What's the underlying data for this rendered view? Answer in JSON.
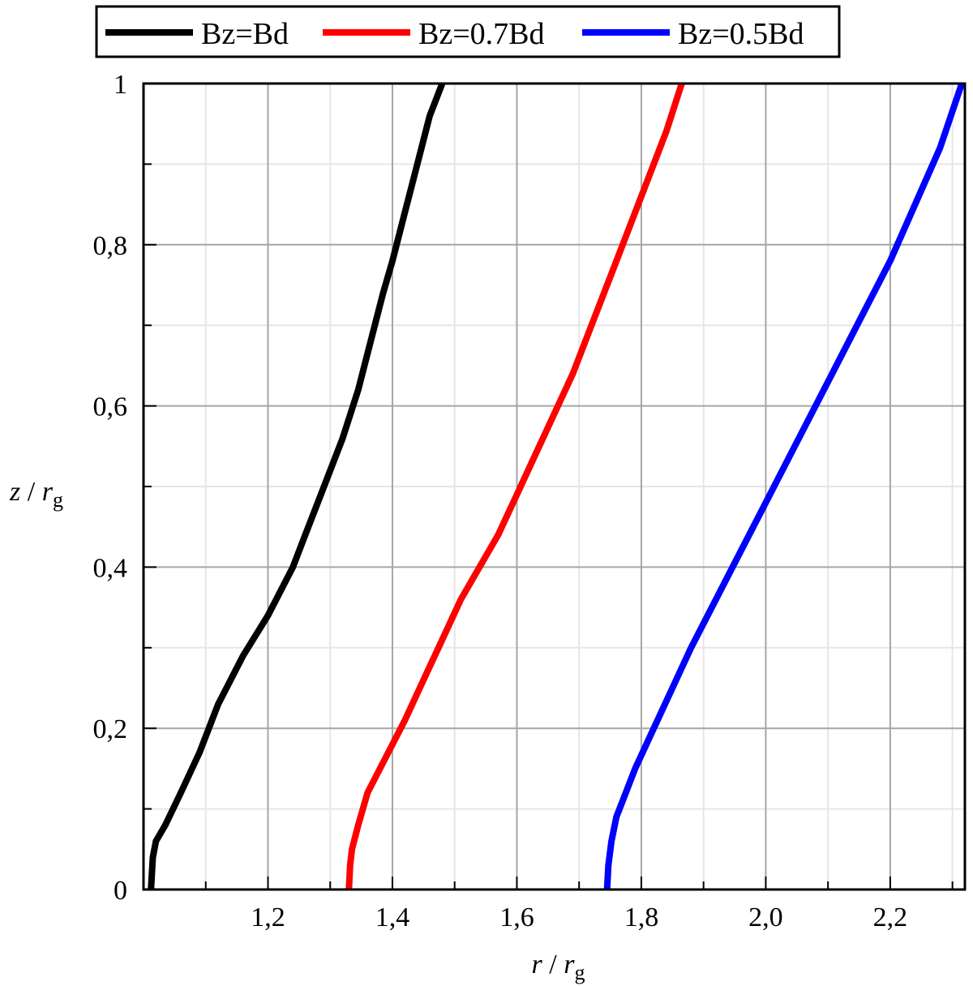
{
  "chart_data": {
    "type": "line",
    "xlabel": "r / rg",
    "ylabel": "z / rg",
    "xlabel_parts": {
      "var": "r",
      "sep": " / ",
      "base": "r",
      "sub": "g"
    },
    "ylabel_parts": {
      "var": "z",
      "sep": " / ",
      "base": "r",
      "sub": "g"
    },
    "xlim": [
      1.0,
      2.32
    ],
    "ylim": [
      0,
      1
    ],
    "x_ticks": [
      1.2,
      1.4,
      1.6,
      1.8,
      2.0,
      2.2
    ],
    "x_tick_labels": [
      "1,2",
      "1,4",
      "1,6",
      "1,8",
      "2,0",
      "2,2"
    ],
    "y_ticks": [
      0,
      0.2,
      0.4,
      0.6,
      0.8,
      1
    ],
    "y_tick_labels": [
      "0",
      "0,2",
      "0,4",
      "0,6",
      "0,8",
      "1"
    ],
    "grid": true,
    "legend_position": "top",
    "series": [
      {
        "name": "Bz=Bd",
        "color": "#000000",
        "x": [
          1.012,
          1.015,
          1.02,
          1.035,
          1.06,
          1.09,
          1.12,
          1.16,
          1.2,
          1.24,
          1.26,
          1.29,
          1.32,
          1.345,
          1.365,
          1.385,
          1.4,
          1.42,
          1.44,
          1.46,
          1.48
        ],
        "y": [
          0,
          0.04,
          0.06,
          0.08,
          0.12,
          0.17,
          0.23,
          0.29,
          0.34,
          0.4,
          0.44,
          0.5,
          0.56,
          0.62,
          0.68,
          0.74,
          0.78,
          0.84,
          0.9,
          0.96,
          1.0
        ]
      },
      {
        "name": "Bz=0.7Bd",
        "color": "#ff0000",
        "x": [
          1.33,
          1.332,
          1.335,
          1.345,
          1.36,
          1.38,
          1.4,
          1.42,
          1.45,
          1.48,
          1.51,
          1.54,
          1.57,
          1.6,
          1.63,
          1.66,
          1.69,
          1.72,
          1.75,
          1.78,
          1.81,
          1.84,
          1.865
        ],
        "y": [
          0,
          0.03,
          0.05,
          0.08,
          0.12,
          0.15,
          0.18,
          0.21,
          0.26,
          0.31,
          0.36,
          0.4,
          0.44,
          0.49,
          0.54,
          0.59,
          0.64,
          0.7,
          0.76,
          0.82,
          0.88,
          0.94,
          1.0
        ]
      },
      {
        "name": "Bz=0.5Bd",
        "color": "#0000ff",
        "x": [
          1.745,
          1.747,
          1.752,
          1.76,
          1.775,
          1.79,
          1.82,
          1.85,
          1.88,
          1.92,
          1.96,
          2.0,
          2.04,
          2.08,
          2.12,
          2.16,
          2.2,
          2.24,
          2.28,
          2.315
        ],
        "y": [
          0,
          0.03,
          0.06,
          0.09,
          0.12,
          0.15,
          0.2,
          0.25,
          0.3,
          0.36,
          0.42,
          0.48,
          0.54,
          0.6,
          0.66,
          0.72,
          0.78,
          0.85,
          0.92,
          1.0
        ]
      }
    ]
  }
}
